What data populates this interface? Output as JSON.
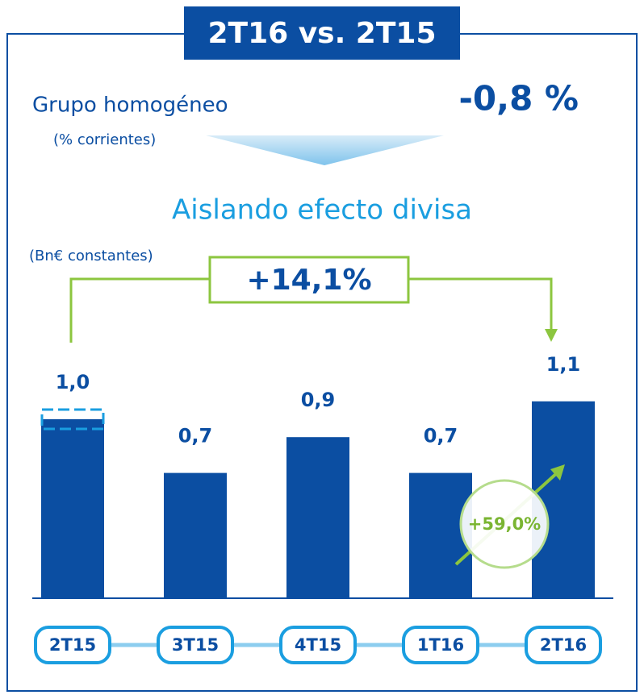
{
  "chart_data": {
    "type": "bar",
    "title": "2T16 vs. 2T15",
    "group_label": "Grupo homogéneo",
    "group_unit": "(% corrientes)",
    "group_change": "-0,8 %",
    "subtitle": "Aislando efecto divisa",
    "unit_label": "(Bn€ constantes)",
    "period_change": "+14,1%",
    "quarter_change": "+59,0%",
    "categories": [
      "2T15",
      "3T15",
      "4T15",
      "1T16",
      "2T16"
    ],
    "values": [
      1.0,
      0.7,
      0.9,
      0.7,
      1.1
    ],
    "value_labels": [
      "1,0",
      "0,7",
      "0,9",
      "0,7",
      "1,1"
    ],
    "color": "#0b4ea2"
  }
}
